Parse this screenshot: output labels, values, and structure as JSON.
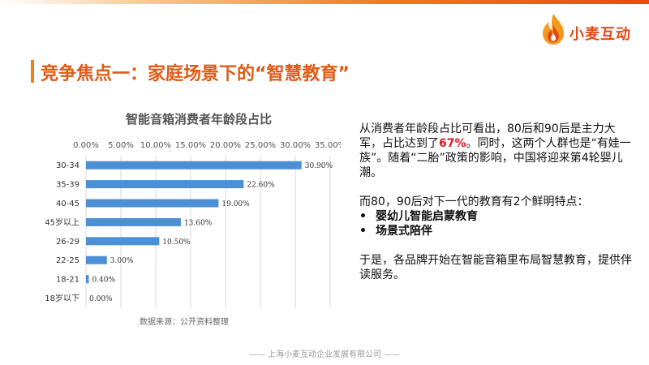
{
  "header": {
    "logo_text": "小麦互动",
    "title": "竞争焦点一：家庭场景下的“智慧教育”"
  },
  "chart_data": {
    "type": "bar",
    "orientation": "horizontal",
    "title": "智能音箱消费者年龄段占比",
    "categories": [
      "30-34",
      "35-39",
      "40-45",
      "45岁以上",
      "26-29",
      "22-25",
      "18-21",
      "18岁以下"
    ],
    "values": [
      30.9,
      22.6,
      19.0,
      13.6,
      10.5,
      3.0,
      0.4,
      0.0
    ],
    "value_labels": [
      "30.90%",
      "22.60%",
      "19.00%",
      "13.60%",
      "10.50%",
      "3.00%",
      "0.40%",
      "0.00%"
    ],
    "x_ticks": [
      "0.00%",
      "5.00%",
      "10.00%",
      "15.00%",
      "20.00%",
      "25.00%",
      "30.00%",
      "35.00%"
    ],
    "xlim": [
      0,
      35
    ],
    "axis_position": "top",
    "grid": true,
    "bar_color": "#4d8fd4",
    "source": "数据来源：公开资料整理"
  },
  "text": {
    "p1_before": "从消费者年龄段占比可看出，80后和90后是主力大军，占比达到了",
    "p1_highlight": "67%",
    "p1_after": "。同时，这两个人群也是“有娃一族”。随着“二胎”政策的影响，中国将迎来第4轮婴儿潮。",
    "p2": "而80，90后对下一代的教育有2个鲜明特点：",
    "bullet_char": "•",
    "bullets": [
      "婴幼儿智能启蒙教育",
      "场景式陪伴"
    ],
    "p3": "于是，各品牌开始在智能音箱里布局智慧教育，提供伴读服务。"
  },
  "footer": "—— 上海小麦互动企业发展有限公司 ——",
  "colors": {
    "accent": "#e05a14",
    "highlight": "#e0141c",
    "bar": "#4d8fd4"
  }
}
